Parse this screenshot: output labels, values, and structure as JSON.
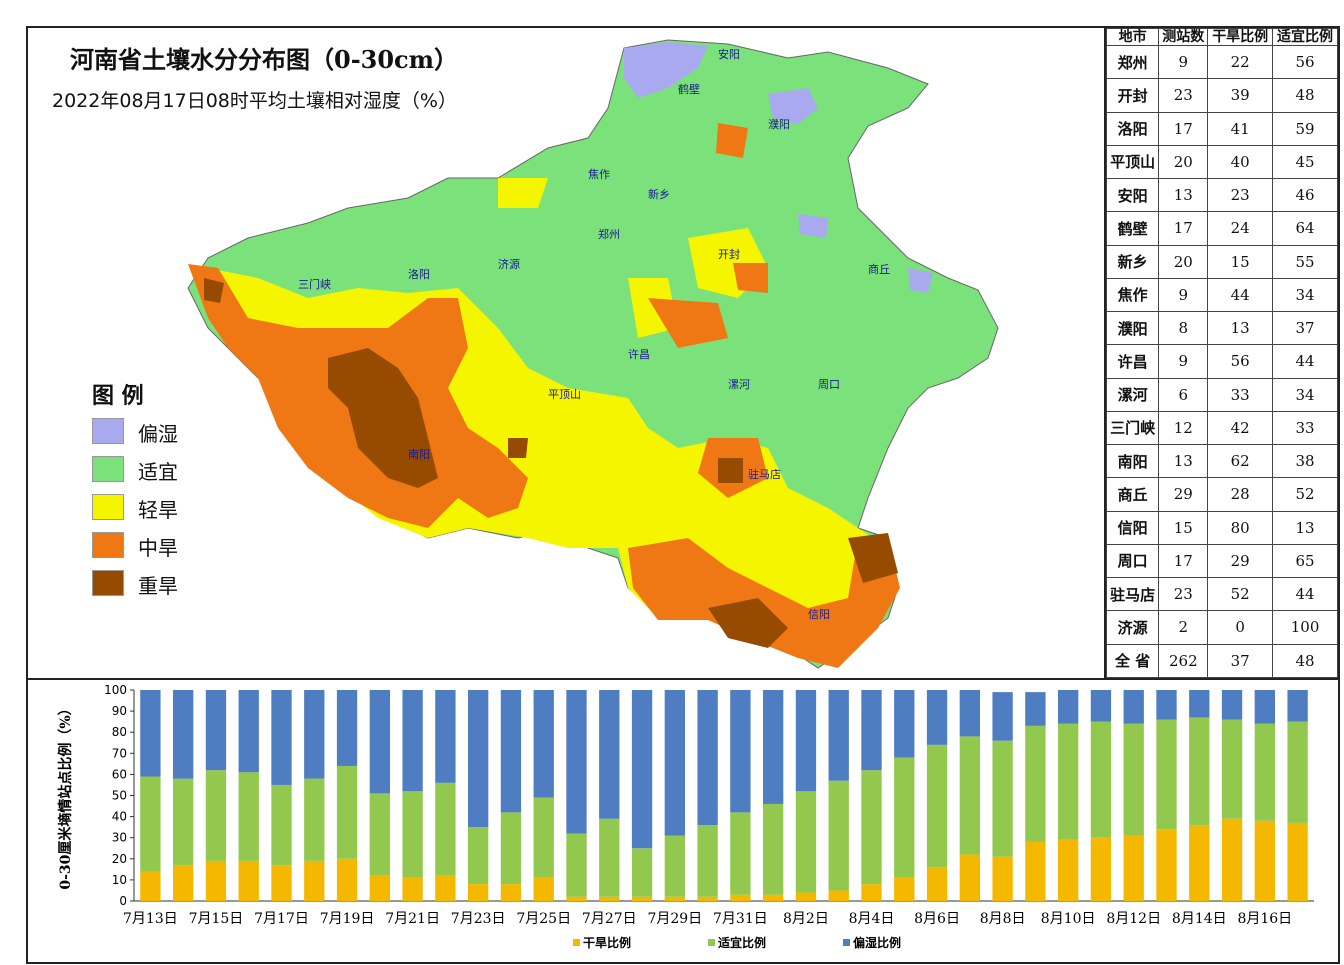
{
  "map": {
    "title": "河南省土壤水分分布图（0-30cm）",
    "subtitle": "2022年08月17日08时平均土壤相对湿度（%）",
    "legend_title": "图  例",
    "legend": [
      {
        "label": "偏湿",
        "color": "#a9a9f0"
      },
      {
        "label": "适宜",
        "color": "#7be27b"
      },
      {
        "label": "轻旱",
        "color": "#f5f500"
      },
      {
        "label": "中旱",
        "color": "#f07814"
      },
      {
        "label": "重旱",
        "color": "#964b00"
      }
    ],
    "place_labels": [
      "郑州",
      "开封",
      "洛阳",
      "安阳",
      "新乡",
      "焦作",
      "濮阳",
      "许昌",
      "漯河",
      "三门峡",
      "南阳",
      "商丘",
      "信阳",
      "周口",
      "驻马店",
      "平顶山",
      "鹤壁",
      "济源"
    ]
  },
  "table": {
    "headers": [
      "地市",
      "测站数",
      "干旱比例",
      "适宜比例"
    ],
    "rows": [
      [
        "郑州",
        "9",
        "22",
        "56"
      ],
      [
        "开封",
        "23",
        "39",
        "48"
      ],
      [
        "洛阳",
        "17",
        "41",
        "59"
      ],
      [
        "平顶山",
        "20",
        "40",
        "45"
      ],
      [
        "安阳",
        "13",
        "23",
        "46"
      ],
      [
        "鹤壁",
        "17",
        "24",
        "64"
      ],
      [
        "新乡",
        "20",
        "15",
        "55"
      ],
      [
        "焦作",
        "9",
        "44",
        "34"
      ],
      [
        "濮阳",
        "8",
        "13",
        "37"
      ],
      [
        "许昌",
        "9",
        "56",
        "44"
      ],
      [
        "漯河",
        "6",
        "33",
        "34"
      ],
      [
        "三门峡",
        "12",
        "42",
        "33"
      ],
      [
        "南阳",
        "13",
        "62",
        "38"
      ],
      [
        "商丘",
        "29",
        "28",
        "52"
      ],
      [
        "信阳",
        "15",
        "80",
        "13"
      ],
      [
        "周口",
        "17",
        "29",
        "65"
      ],
      [
        "驻马店",
        "23",
        "52",
        "44"
      ],
      [
        "济源",
        "2",
        "0",
        "100"
      ],
      [
        "全  省",
        "262",
        "37",
        "48"
      ]
    ]
  },
  "chart_data": {
    "type": "bar",
    "stacked": true,
    "ylabel": "0-30厘米墒情站点比例（%）",
    "ylim": [
      0,
      100
    ],
    "yticks": [
      0,
      10,
      20,
      30,
      40,
      50,
      60,
      70,
      80,
      90,
      100
    ],
    "xtick_labels": [
      "7月13日",
      "7月15日",
      "7月17日",
      "7月19日",
      "7月21日",
      "7月23日",
      "7月25日",
      "7月27日",
      "7月29日",
      "7月31日",
      "8月2日",
      "8月4日",
      "8月6日",
      "8月8日",
      "8月10日",
      "8月12日",
      "8月14日",
      "8月16日"
    ],
    "categories": [
      "7月13日",
      "7月14日",
      "7月15日",
      "7月16日",
      "7月17日",
      "7月18日",
      "7月19日",
      "7月20日",
      "7月21日",
      "7月22日",
      "7月23日",
      "7月24日",
      "7月25日",
      "7月26日",
      "7月27日",
      "7月28日",
      "7月29日",
      "7月30日",
      "7月31日",
      "8月1日",
      "8月2日",
      "8月3日",
      "8月4日",
      "8月5日",
      "8月6日",
      "8月7日",
      "8月8日",
      "8月9日",
      "8月10日",
      "8月11日",
      "8月12日",
      "8月13日",
      "8月14日",
      "8月15日",
      "8月16日",
      "8月17日"
    ],
    "series": [
      {
        "name": "干旱比例",
        "color": "#f5b800",
        "values": [
          14,
          17,
          19,
          19,
          17,
          19,
          20,
          12,
          11,
          12,
          8,
          8,
          11,
          2,
          2,
          2,
          2,
          2,
          3,
          3,
          4,
          5,
          8,
          11,
          16,
          22,
          21,
          28,
          29,
          30,
          31,
          34,
          36,
          39,
          38,
          37
        ]
      },
      {
        "name": "适宜比例",
        "color": "#92c84e",
        "values": [
          45,
          41,
          43,
          42,
          38,
          39,
          44,
          39,
          41,
          44,
          27,
          34,
          38,
          30,
          37,
          23,
          29,
          34,
          39,
          43,
          48,
          52,
          54,
          57,
          58,
          56,
          55,
          55,
          55,
          55,
          53,
          52,
          51,
          47,
          46,
          48
        ]
      },
      {
        "name": "偏湿比例",
        "color": "#4f7dc1",
        "values": [
          41,
          42,
          38,
          39,
          45,
          42,
          36,
          49,
          48,
          44,
          65,
          58,
          51,
          68,
          61,
          75,
          69,
          64,
          58,
          54,
          48,
          43,
          38,
          32,
          26,
          22,
          23,
          16,
          16,
          15,
          16,
          14,
          13,
          14,
          16,
          15
        ]
      }
    ],
    "legend_position": "bottom"
  }
}
